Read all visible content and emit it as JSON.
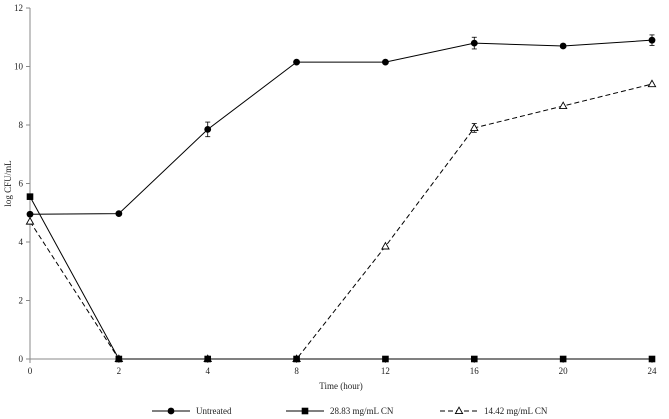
{
  "chart_data": {
    "type": "line",
    "title": "",
    "xlabel": "Time (hour)",
    "ylabel": "log CFU/mL",
    "categories": [
      "0",
      "2",
      "4",
      "8",
      "12",
      "16",
      "20",
      "24"
    ],
    "ylim": [
      0,
      12
    ],
    "yticks": [
      0,
      2,
      4,
      6,
      8,
      10,
      12
    ],
    "grid": false,
    "legend_position": "bottom",
    "series": [
      {
        "name": "Untreated",
        "marker": "circle",
        "line_style": "solid",
        "values": [
          4.95,
          4.97,
          7.85,
          10.15,
          10.15,
          10.8,
          10.7,
          10.9
        ],
        "errors": [
          0,
          0,
          0.25,
          0,
          0,
          0.2,
          0,
          0.18
        ]
      },
      {
        "name": "28.83 mg/mL CN",
        "marker": "square",
        "line_style": "solid",
        "values": [
          5.55,
          0,
          0,
          0,
          0,
          0,
          0,
          0
        ],
        "errors": [
          0,
          0,
          0,
          0,
          0,
          0,
          0,
          0
        ]
      },
      {
        "name": "14.42 mg/mL CN",
        "marker": "triangle-open",
        "line_style": "dashed",
        "values": [
          4.7,
          0,
          0,
          0,
          3.85,
          7.9,
          8.65,
          9.4
        ],
        "errors": [
          0,
          0,
          0,
          0,
          0,
          0.15,
          0,
          0
        ]
      }
    ]
  }
}
